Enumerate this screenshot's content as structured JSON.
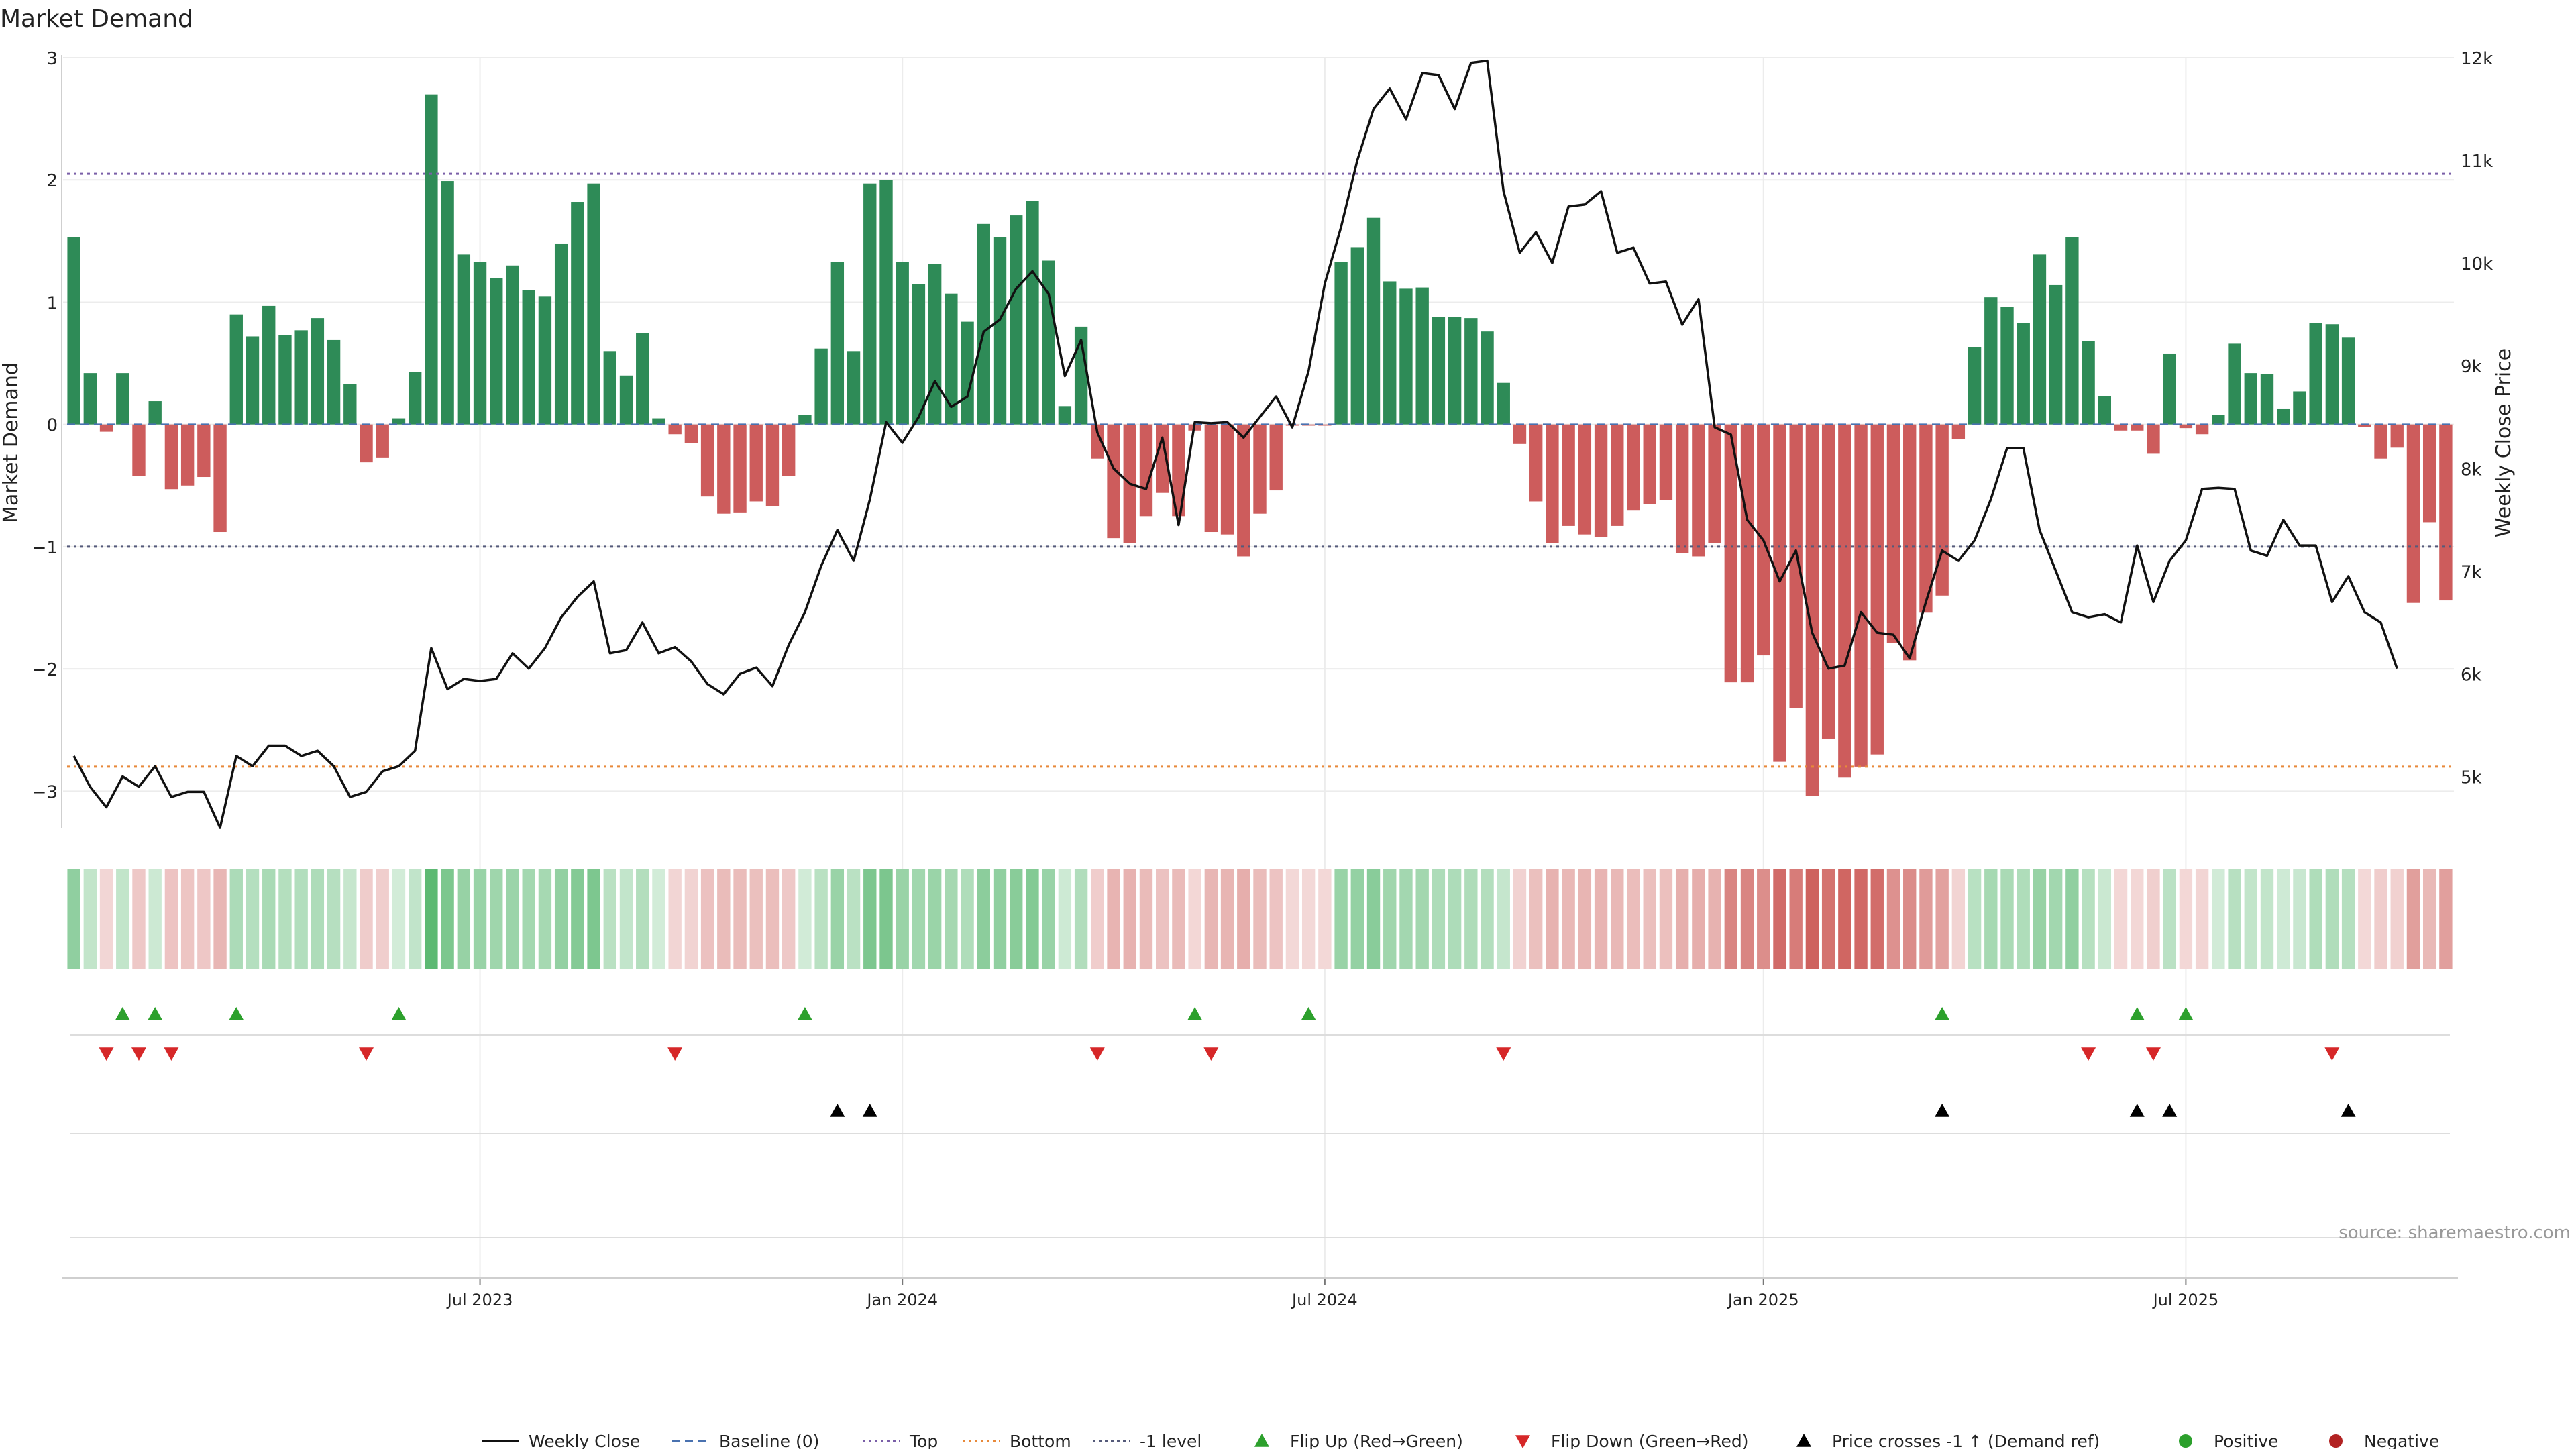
{
  "chart_data": {
    "type": "bar",
    "title": "Market Demand",
    "ylabel": "Market Demand",
    "y2label": "Weekly Close Price",
    "ylim": [
      -3.3,
      3.0
    ],
    "y2lim": [
      4500,
      12000
    ],
    "yticks": [
      3,
      2,
      1,
      0,
      -1,
      -2,
      -3
    ],
    "ytick_labels": [
      "3",
      "2",
      "1",
      "0",
      "−1",
      "−2",
      "−3"
    ],
    "y2ticks": [
      12000,
      11000,
      10000,
      9000,
      8000,
      7000,
      6000,
      5000
    ],
    "y2tick_labels": [
      "12k",
      "11k",
      "10k",
      "9k",
      "8k",
      "7k",
      "6k",
      "5k"
    ],
    "x_start": "2023-01-09",
    "x_step_days": 7,
    "xticks": [
      {
        "date": "2023-07-03",
        "label": "Jul 2023"
      },
      {
        "date": "2024-01-01",
        "label": "Jan 2024"
      },
      {
        "date": "2024-07-01",
        "label": "Jul 2024"
      },
      {
        "date": "2025-01-06",
        "label": "Jan 2025"
      },
      {
        "date": "2025-07-07",
        "label": "Jul 2025"
      }
    ],
    "levels": {
      "top": 2.05,
      "bottom": -2.8,
      "minus_one": -1,
      "baseline": 0
    },
    "demand": [
      1.53,
      0.42,
      -0.06,
      0.42,
      -0.42,
      0.19,
      -0.53,
      -0.5,
      -0.43,
      -0.88,
      0.9,
      0.72,
      0.97,
      0.73,
      0.77,
      0.87,
      0.69,
      0.33,
      -0.31,
      -0.27,
      0.05,
      0.43,
      2.7,
      1.99,
      1.39,
      1.33,
      1.2,
      1.3,
      1.1,
      1.05,
      1.48,
      1.82,
      1.97,
      0.6,
      0.4,
      0.75,
      0.05,
      -0.08,
      -0.15,
      -0.59,
      -0.73,
      -0.72,
      -0.63,
      -0.67,
      -0.42,
      0.08,
      0.62,
      1.33,
      0.6,
      1.97,
      2.0,
      1.33,
      1.15,
      1.31,
      1.07,
      0.84,
      1.64,
      1.53,
      1.71,
      1.83,
      1.34,
      0.15,
      0.8,
      -0.28,
      -0.93,
      -0.97,
      -0.75,
      -0.56,
      -0.75,
      -0.05,
      -0.88,
      -0.9,
      -1.08,
      -0.73,
      -0.54,
      -0.01,
      -0.01,
      -0.01,
      1.33,
      1.45,
      1.69,
      1.17,
      1.11,
      1.12,
      0.88,
      0.88,
      0.87,
      0.76,
      0.34,
      -0.16,
      -0.63,
      -0.97,
      -0.83,
      -0.9,
      -0.92,
      -0.83,
      -0.7,
      -0.65,
      -0.62,
      -1.05,
      -1.08,
      -0.97,
      -2.11,
      -2.11,
      -1.89,
      -2.76,
      -2.32,
      -3.04,
      -2.57,
      -2.89,
      -2.8,
      -2.7,
      -1.79,
      -1.93,
      -1.54,
      -1.4,
      -0.12,
      0.63,
      1.04,
      0.96,
      0.83,
      1.39,
      1.14,
      1.53,
      0.68,
      0.23,
      -0.05,
      -0.05,
      -0.24,
      0.58,
      -0.03,
      -0.08,
      0.08,
      0.66,
      0.42,
      0.41,
      0.13,
      0.27,
      0.83,
      0.82,
      0.71,
      -0.02,
      -0.28,
      -0.19,
      -1.46,
      -0.8,
      -1.44
    ],
    "price": [
      5200,
      4900,
      4700,
      5000,
      4900,
      5100,
      4800,
      4850,
      4850,
      4500,
      5200,
      5100,
      5300,
      5300,
      5200,
      5250,
      5100,
      4800,
      4850,
      5050,
      5100,
      5250,
      6250,
      5850,
      5950,
      5930,
      5950,
      6200,
      6050,
      6250,
      6550,
      6750,
      6900,
      6200,
      6230,
      6500,
      6200,
      6260,
      6120,
      5900,
      5800,
      6000,
      6060,
      5880,
      6280,
      6600,
      7050,
      7400,
      7100,
      7700,
      8450,
      8250,
      8500,
      8850,
      8600,
      8700,
      9330,
      9450,
      9750,
      9920,
      9700,
      8900,
      9250,
      8350,
      8000,
      7850,
      7800,
      8300,
      7450,
      8450,
      8440,
      8450,
      8300,
      8500,
      8700,
      8400,
      8950,
      9800,
      10350,
      11000,
      11500,
      11700,
      11400,
      11850,
      11830,
      11500,
      11950,
      11970,
      10700,
      10100,
      10300,
      10000,
      10550,
      10570,
      10700,
      10100,
      10150,
      9800,
      9820,
      9400,
      9650,
      8400,
      8330,
      7500,
      7300,
      6900,
      7200,
      6400,
      6050,
      6080,
      6600,
      6400,
      6380,
      6150,
      6700,
      7200,
      7100,
      7300,
      7700,
      8200,
      8200,
      7400,
      7000,
      6600,
      6550,
      6580,
      6500,
      7250,
      6700,
      7100,
      7300,
      7800,
      7810,
      7800,
      7200,
      7150,
      7500,
      7250,
      7250,
      6700,
      6950,
      6600,
      6500,
      6050
    ],
    "flip_up_idx": [
      3,
      5,
      10,
      20,
      45,
      69,
      76,
      115,
      127,
      130
    ],
    "flip_down_idx": [
      2,
      4,
      6,
      18,
      37,
      63,
      70,
      88,
      124,
      128,
      139
    ],
    "price_cross_idx": [
      47,
      49,
      115,
      127,
      129,
      140
    ],
    "legend": [
      {
        "label": "Weekly Close",
        "kind": "line-solid",
        "color": "#111111"
      },
      {
        "label": "Baseline (0)",
        "kind": "line-dash",
        "color": "#4a72b0"
      },
      {
        "label": "Top",
        "kind": "line-dot",
        "color": "#7a5fa8"
      },
      {
        "label": "Bottom",
        "kind": "line-dot",
        "color": "#e8893a"
      },
      {
        "label": "-1 level",
        "kind": "line-dot",
        "color": "#555a7a"
      },
      {
        "label": "Flip Up (Red→Green)",
        "kind": "tri-up",
        "color": "#2ca02c"
      },
      {
        "label": "Flip Down (Green→Red)",
        "kind": "tri-down",
        "color": "#d62728"
      },
      {
        "label": "Price crosses -1 ↑ (Demand ref)",
        "kind": "tri-up",
        "color": "#000000"
      },
      {
        "label": "Positive",
        "kind": "dot",
        "color": "#2ca02c"
      },
      {
        "label": "Negative",
        "kind": "dot",
        "color": "#b22222"
      }
    ],
    "colors": {
      "positive": "#2e8b57",
      "negative": "#cd5c5c",
      "price": "#111111"
    },
    "source": "source: sharemaestro.com"
  }
}
